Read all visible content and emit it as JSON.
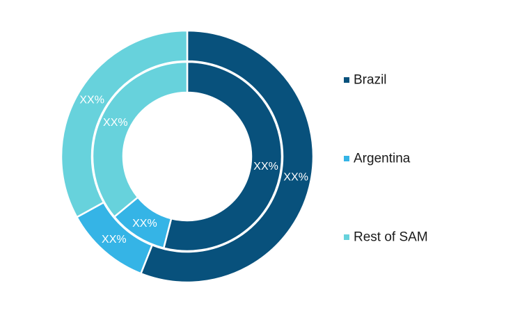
{
  "chart_data": {
    "type": "pie",
    "variant": "nested-donut",
    "categories": [
      "Brazil",
      "Argentina",
      "Rest of SAM"
    ],
    "colors": [
      "#08517c",
      "#35b4e6",
      "#67d2dc"
    ],
    "rings": [
      {
        "values": [
          56,
          11,
          33
        ],
        "labels": [
          "XX%",
          "XX%",
          "XX%"
        ]
      },
      {
        "values": [
          54,
          10,
          36
        ],
        "labels": [
          "XX%",
          "XX%",
          "XX%"
        ]
      }
    ],
    "legend": {
      "placement": "right",
      "items": [
        "Brazil",
        "Argentina",
        "Rest of SAM"
      ]
    }
  }
}
